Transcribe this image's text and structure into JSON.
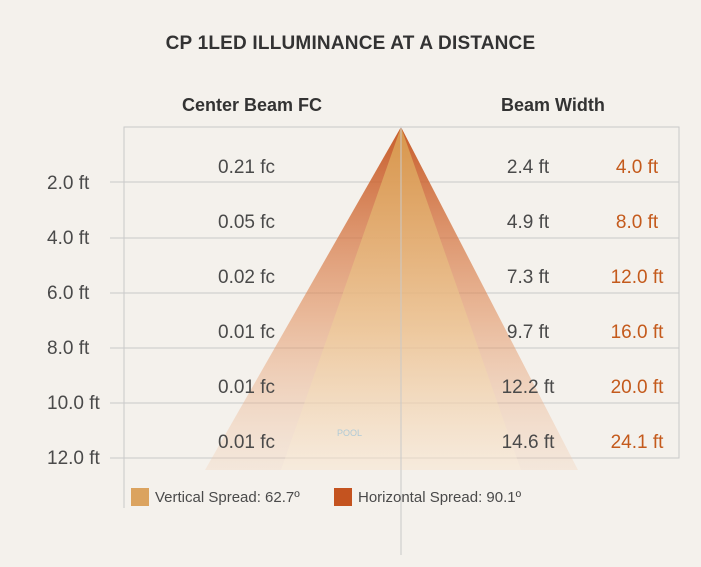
{
  "title": "CP 1LED ILLUMINANCE AT A DISTANCE",
  "headers": {
    "fc": "Center Beam FC",
    "beam_width": "Beam Width"
  },
  "rows": [
    {
      "distance": "2.0 ft",
      "fc": "0.21 fc",
      "vertical": "2.4 ft",
      "horizontal": "4.0 ft"
    },
    {
      "distance": "4.0 ft",
      "fc": "0.05 fc",
      "vertical": "4.9 ft",
      "horizontal": "8.0 ft"
    },
    {
      "distance": "6.0 ft",
      "fc": "0.02 fc",
      "vertical": "7.3 ft",
      "horizontal": "12.0 ft"
    },
    {
      "distance": "8.0 ft",
      "fc": "0.01 fc",
      "vertical": "9.7 ft",
      "horizontal": "16.0 ft"
    },
    {
      "distance": "10.0 ft",
      "fc": "0.01 fc",
      "vertical": "12.2 ft",
      "horizontal": "20.0 ft"
    },
    {
      "distance": "12.0 ft",
      "fc": "0.01 fc",
      "vertical": "14.6 ft",
      "horizontal": "24.1 ft"
    }
  ],
  "legend": [
    {
      "label": "Vertical Spread: 62.7º",
      "color": "#dba35f"
    },
    {
      "label": "Horizontal Spread: 90.1º",
      "color": "#c4531f"
    }
  ],
  "watermark": "POOL",
  "colors": {
    "horizontal_text": "#c45a1c",
    "grid": "#c9c9c9"
  }
}
